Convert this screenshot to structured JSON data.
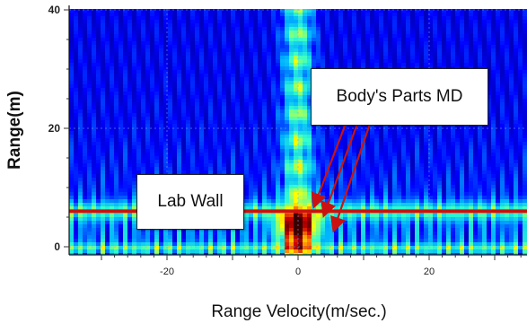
{
  "chart_data": {
    "type": "heatmap",
    "title": "",
    "xlabel": "Range Velocity(m/sec.)",
    "ylabel": "Range(m)",
    "xlim": [
      -35,
      35
    ],
    "ylim": [
      -1,
      40
    ],
    "x_ticks": [
      -20,
      0,
      20
    ],
    "x_tick_labels": [
      "-20",
      "0",
      "20"
    ],
    "y_ticks": [
      0,
      20,
      40
    ],
    "y_tick_labels": [
      "0",
      "20",
      "40"
    ],
    "grid": true,
    "colormap": [
      "#00007f",
      "#0000ff",
      "#00b4ff",
      "#33ffcc",
      "#ffff00",
      "#ff8000",
      "#cc0000",
      "#3a0000"
    ],
    "horizontal_line": {
      "y": 6,
      "color": "#cc1111"
    },
    "hotspot": {
      "x": 0,
      "y": 3
    },
    "annotations": [
      {
        "text": "Body's Parts MD",
        "arrow_targets": [
          {
            "x": 2.5,
            "y": 7
          },
          {
            "x": 4,
            "y": 5.5
          },
          {
            "x": 5.5,
            "y": 3
          }
        ]
      },
      {
        "text": "Lab Wall"
      }
    ]
  }
}
